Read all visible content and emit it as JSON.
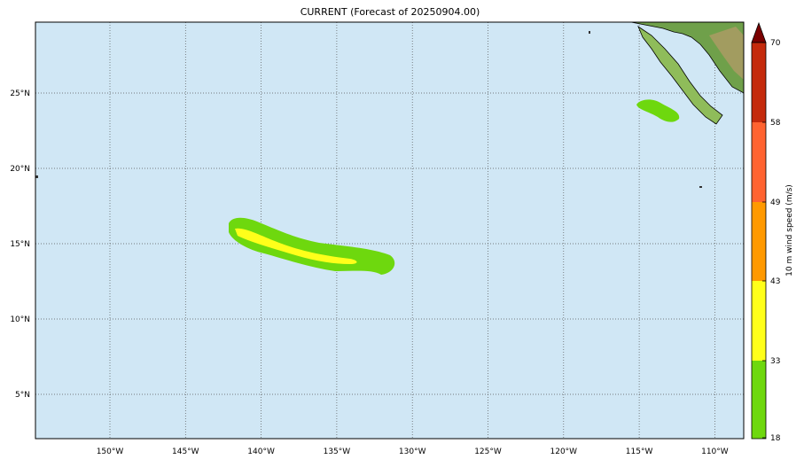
{
  "title": "CURRENT (Forecast of 20250904.00)",
  "latitude_labels": [
    "25°N",
    "20°N",
    "15°N",
    "10°N",
    "5°N"
  ],
  "longitude_labels": [
    "150°W",
    "145°W",
    "140°W",
    "135°W",
    "130°W",
    "125°W",
    "120°W",
    "115°W",
    "110°W"
  ],
  "colorbar": {
    "label": "10 m wind speed (m/s)",
    "ticks": [
      "70",
      "58",
      "49",
      "43",
      "33",
      "18"
    ]
  }
}
